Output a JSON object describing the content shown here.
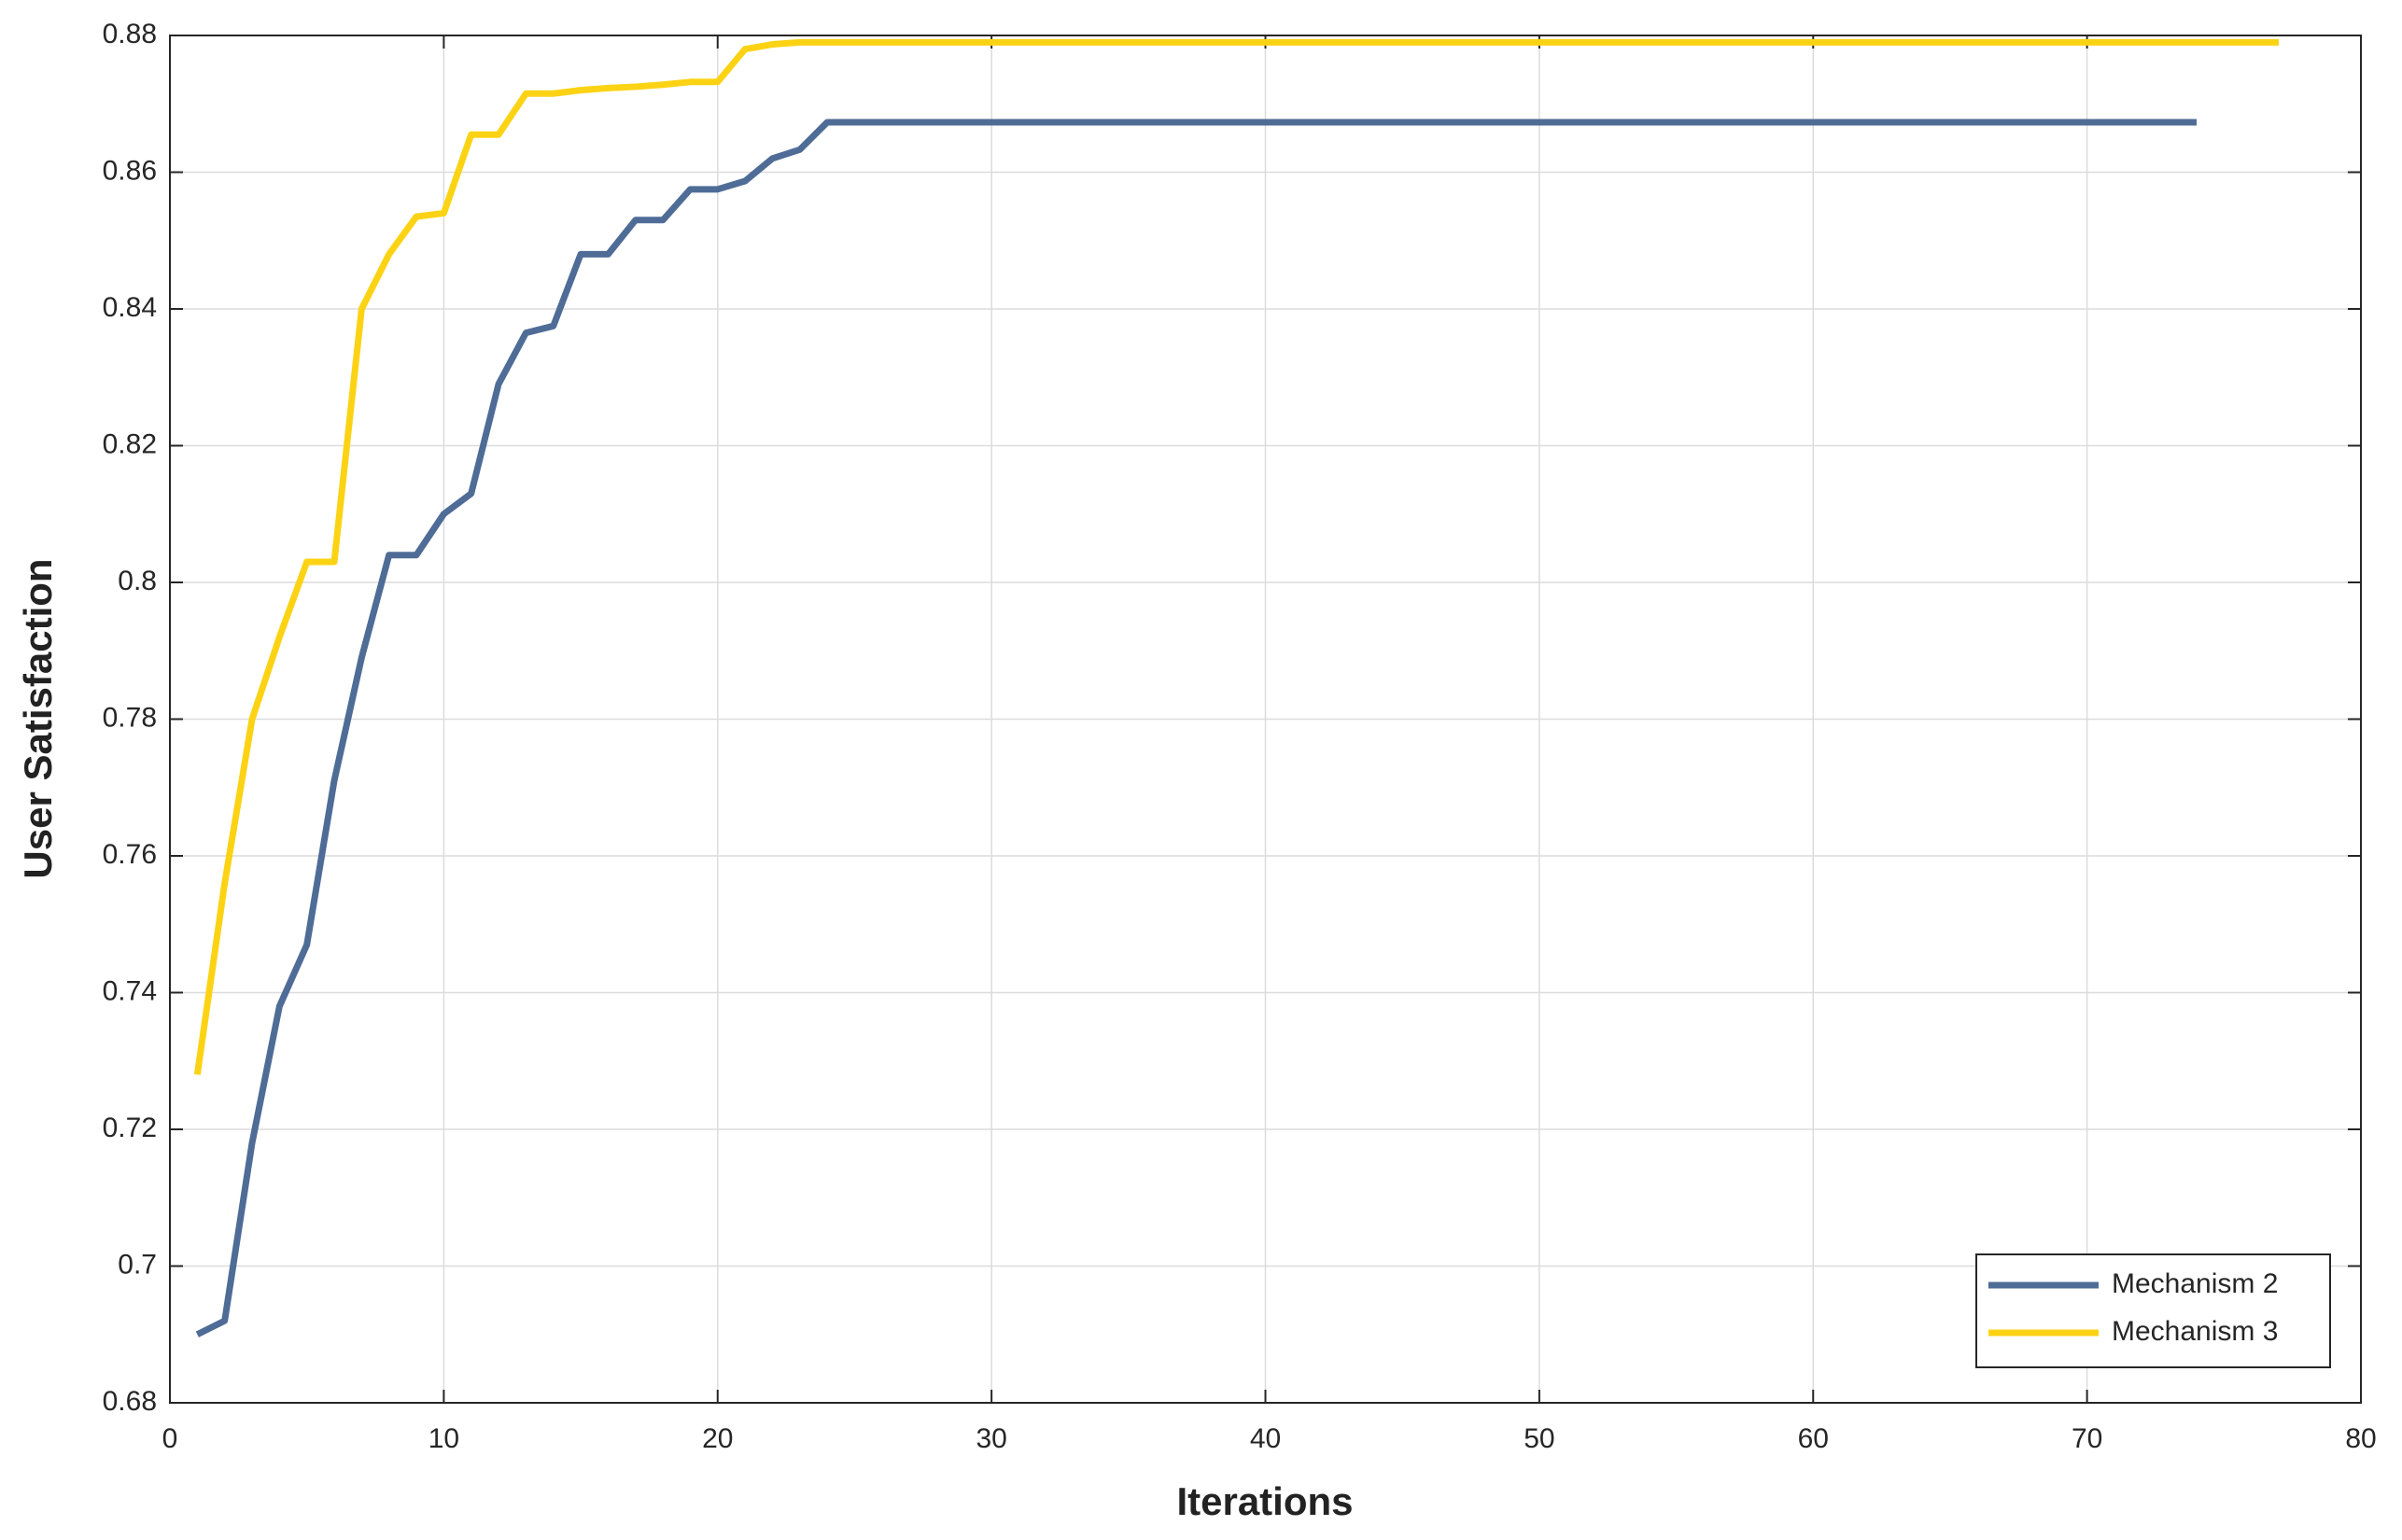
{
  "chart_data": {
    "type": "line",
    "xlabel": "Iterations",
    "ylabel": "User Satisfaction",
    "xlim": [
      0,
      80
    ],
    "xticks": [
      0,
      10,
      20,
      30,
      40,
      50,
      60,
      70,
      80
    ],
    "ylim": [
      0.68,
      0.88
    ],
    "yticks": [
      {
        "value": 0.68,
        "label": "0.68"
      },
      {
        "value": 0.7,
        "label": "0.7"
      },
      {
        "value": 0.72,
        "label": "0.72"
      },
      {
        "value": 0.74,
        "label": "0.74"
      },
      {
        "value": 0.76,
        "label": "0.76"
      },
      {
        "value": 0.78,
        "label": "0.78"
      },
      {
        "value": 0.8,
        "label": "0.8"
      },
      {
        "value": 0.82,
        "label": "0.82"
      },
      {
        "value": 0.84,
        "label": "0.84"
      },
      {
        "value": 0.86,
        "label": "0.86"
      },
      {
        "value": 0.88,
        "label": "0.88"
      }
    ],
    "grid": true,
    "legend": "lower right",
    "series": [
      {
        "name": "Mechanism 2",
        "color": "#4f6c97",
        "x": [
          1,
          2,
          3,
          4,
          5,
          6,
          7,
          8,
          9,
          10,
          11,
          12,
          13,
          14,
          15,
          16,
          17,
          18,
          19,
          20,
          21,
          22,
          23,
          24,
          25,
          26,
          27,
          28,
          29,
          30,
          31,
          32,
          33,
          34,
          35,
          36,
          37,
          38,
          39,
          40,
          41,
          42,
          43,
          44,
          45,
          46,
          47,
          48,
          49,
          50,
          51,
          52,
          53,
          54,
          55,
          56,
          57,
          58,
          59,
          60,
          61,
          62,
          63,
          64,
          65,
          66,
          67,
          68,
          69,
          70,
          71,
          72,
          73,
          74
        ],
        "values": [
          0.69,
          0.692,
          0.718,
          0.738,
          0.747,
          0.771,
          0.789,
          0.804,
          0.804,
          0.81,
          0.813,
          0.829,
          0.8365,
          0.8375,
          0.848,
          0.848,
          0.853,
          0.853,
          0.8575,
          0.8575,
          0.8587,
          0.862,
          0.8633,
          0.8673,
          0.8673,
          0.8673,
          0.8673,
          0.8673,
          0.8673,
          0.8673,
          0.8673,
          0.8673,
          0.8673,
          0.8673,
          0.8673,
          0.8673,
          0.8673,
          0.8673,
          0.8673,
          0.8673,
          0.8673,
          0.8673,
          0.8673,
          0.8673,
          0.8673,
          0.8673,
          0.8673,
          0.8673,
          0.8673,
          0.8673,
          0.8673,
          0.8673,
          0.8673,
          0.8673,
          0.8673,
          0.8673,
          0.8673,
          0.8673,
          0.8673,
          0.8673,
          0.8673,
          0.8673,
          0.8673,
          0.8673,
          0.8673,
          0.8673,
          0.8673,
          0.8673,
          0.8673,
          0.8673,
          0.8673,
          0.8673,
          0.8673,
          0.8673
        ]
      },
      {
        "name": "Mechanism 3",
        "color": "#fcd314",
        "x": [
          1,
          2,
          3,
          4,
          5,
          6,
          7,
          8,
          9,
          10,
          11,
          12,
          13,
          14,
          15,
          16,
          17,
          18,
          19,
          20,
          21,
          22,
          23,
          24,
          25,
          26,
          27,
          28,
          29,
          30,
          31,
          32,
          33,
          34,
          35,
          36,
          37,
          38,
          39,
          40,
          41,
          42,
          43,
          44,
          45,
          46,
          47,
          48,
          49,
          50,
          51,
          52,
          53,
          54,
          55,
          56,
          57,
          58,
          59,
          60,
          61,
          62,
          63,
          64,
          65,
          66,
          67,
          68,
          69,
          70,
          71,
          72,
          73,
          74,
          75,
          76,
          77
        ],
        "values": [
          0.728,
          0.756,
          0.78,
          0.792,
          0.803,
          0.803,
          0.84,
          0.848,
          0.8535,
          0.854,
          0.8655,
          0.8655,
          0.8715,
          0.8715,
          0.872,
          0.8723,
          0.8725,
          0.8728,
          0.8732,
          0.8732,
          0.878,
          0.8787,
          0.879,
          0.879,
          0.879,
          0.879,
          0.879,
          0.879,
          0.879,
          0.879,
          0.879,
          0.879,
          0.879,
          0.879,
          0.879,
          0.879,
          0.879,
          0.879,
          0.879,
          0.879,
          0.879,
          0.879,
          0.879,
          0.879,
          0.879,
          0.879,
          0.879,
          0.879,
          0.879,
          0.879,
          0.879,
          0.879,
          0.879,
          0.879,
          0.879,
          0.879,
          0.879,
          0.879,
          0.879,
          0.879,
          0.879,
          0.879,
          0.879,
          0.879,
          0.879,
          0.879,
          0.879,
          0.879,
          0.879,
          0.879,
          0.879,
          0.879,
          0.879,
          0.879,
          0.879,
          0.879,
          0.879
        ]
      }
    ]
  }
}
